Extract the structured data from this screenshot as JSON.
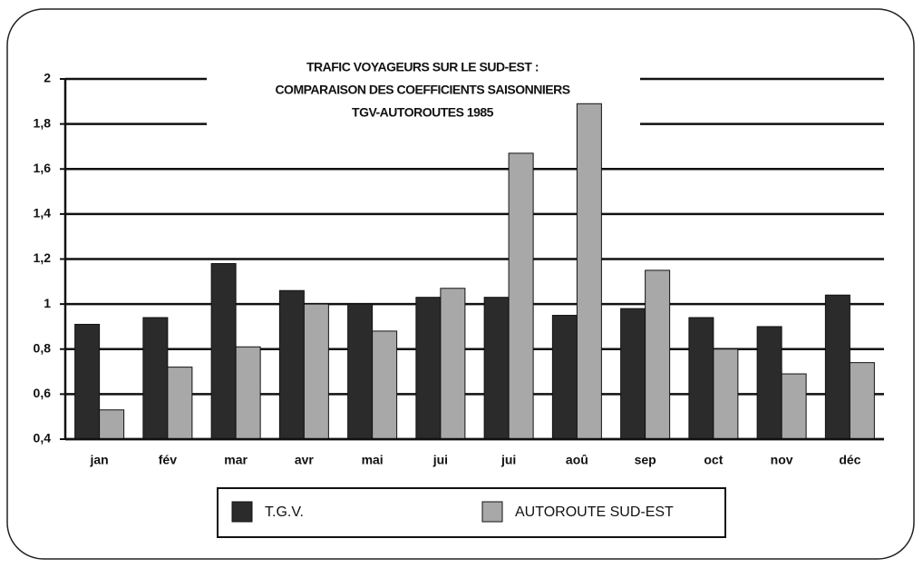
{
  "chart_data": {
    "type": "bar",
    "title": [
      "TRAFIC VOYAGEURS SUR LE SUD-EST :",
      "COMPARAISON DES COEFFICIENTS SAISONNIERS",
      "TGV-AUTOROUTES 1985"
    ],
    "categories": [
      "jan",
      "fév",
      "mar",
      "avr",
      "mai",
      "jui",
      "jui",
      "aoû",
      "sep",
      "oct",
      "nov",
      "déc"
    ],
    "series": [
      {
        "name": "T.G.V.",
        "color": "#2b2b2b",
        "values": [
          0.91,
          0.94,
          1.18,
          1.06,
          1.0,
          1.03,
          1.03,
          0.95,
          0.98,
          0.94,
          0.9,
          1.04
        ]
      },
      {
        "name": "AUTOROUTE SUD-EST",
        "color": "#a8a8a8",
        "values": [
          0.53,
          0.72,
          0.81,
          1.0,
          0.88,
          1.07,
          1.67,
          1.89,
          1.15,
          0.8,
          0.69,
          0.74
        ]
      }
    ],
    "ylim": [
      0.4,
      2
    ],
    "yticks": [
      {
        "value": 0.4,
        "label": "0,4"
      },
      {
        "value": 0.6,
        "label": "0,6"
      },
      {
        "value": 0.8,
        "label": "0,8"
      },
      {
        "value": 1,
        "label": "1"
      },
      {
        "value": 1.2,
        "label": "1,2"
      },
      {
        "value": 1.4,
        "label": "1,4"
      },
      {
        "value": 1.6,
        "label": "1,6"
      },
      {
        "value": 1.8,
        "label": "1,8"
      },
      2
    ],
    "grid": true,
    "legend": "bottom"
  }
}
